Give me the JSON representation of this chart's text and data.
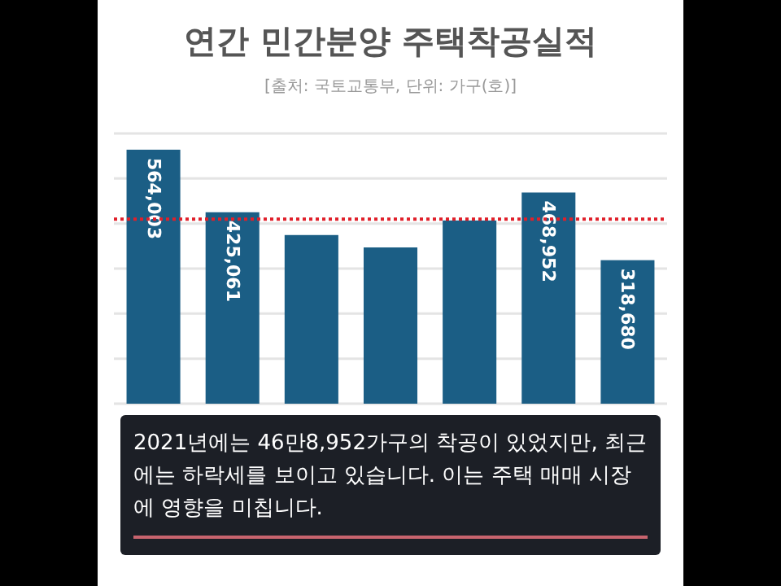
{
  "chart_data": {
    "type": "bar",
    "title": "연간 민간분양 주택착공실적",
    "subtitle": "[출처: 국토교통부, 단위: 가구(호)]",
    "categories": [
      null,
      null,
      null,
      null,
      null,
      null,
      null
    ],
    "values": [
      564003,
      425061,
      374500,
      347000,
      406760,
      468952,
      318680
    ],
    "value_labels": [
      "564,003",
      "425,061",
      null,
      null,
      null,
      "468,952",
      "318,680"
    ],
    "color": "#1b5e85",
    "ylim": [
      0,
      600000
    ],
    "yticks": [
      {
        "value": 0,
        "label": null
      },
      {
        "value": 100000,
        "label": null
      },
      {
        "value": 200000,
        "label": null
      },
      {
        "value": 300000,
        "label": null
      },
      {
        "value": 400000,
        "label": null
      },
      {
        "value": 500000,
        "label": null
      },
      {
        "value": 600000,
        "label": null
      }
    ],
    "grid": "y",
    "ref_lines": [
      {
        "axis": "y",
        "value": 410000,
        "color": "#e0202a",
        "line_style": "dotted"
      }
    ],
    "annotations": [
      "2021년에는 46만8,952가구의 착공이 있었지만, 최근에는 하락세를 보이고 있습니다. 이는 주택 매매 시장에 영향을 미칩니다."
    ]
  }
}
